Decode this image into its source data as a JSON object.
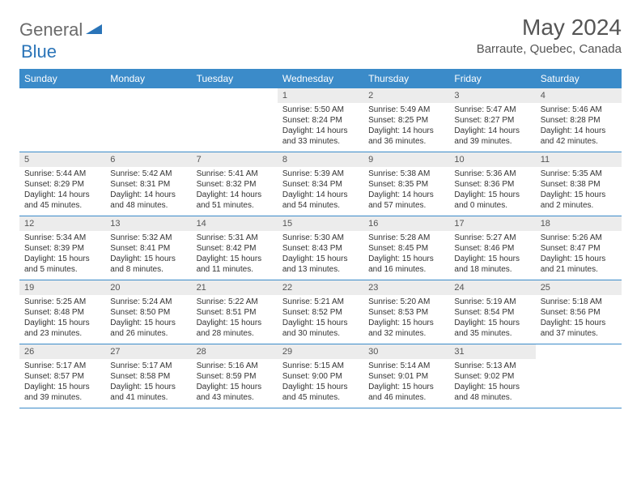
{
  "logo": {
    "general": "General",
    "blue": "Blue"
  },
  "title": "May 2024",
  "location": "Barraute, Quebec, Canada",
  "colors": {
    "header_bg": "#3b8bc9",
    "header_text": "#ffffff",
    "daynum_bg": "#ececec",
    "border": "#3b8bc9",
    "text": "#333333",
    "logo_gray": "#6b6b6b",
    "logo_blue": "#2a74b8"
  },
  "day_names": [
    "Sunday",
    "Monday",
    "Tuesday",
    "Wednesday",
    "Thursday",
    "Friday",
    "Saturday"
  ],
  "weeks": [
    [
      {
        "empty": true
      },
      {
        "empty": true
      },
      {
        "empty": true
      },
      {
        "num": "1",
        "sunrise": "Sunrise: 5:50 AM",
        "sunset": "Sunset: 8:24 PM",
        "daylight": "Daylight: 14 hours and 33 minutes."
      },
      {
        "num": "2",
        "sunrise": "Sunrise: 5:49 AM",
        "sunset": "Sunset: 8:25 PM",
        "daylight": "Daylight: 14 hours and 36 minutes."
      },
      {
        "num": "3",
        "sunrise": "Sunrise: 5:47 AM",
        "sunset": "Sunset: 8:27 PM",
        "daylight": "Daylight: 14 hours and 39 minutes."
      },
      {
        "num": "4",
        "sunrise": "Sunrise: 5:46 AM",
        "sunset": "Sunset: 8:28 PM",
        "daylight": "Daylight: 14 hours and 42 minutes."
      }
    ],
    [
      {
        "num": "5",
        "sunrise": "Sunrise: 5:44 AM",
        "sunset": "Sunset: 8:29 PM",
        "daylight": "Daylight: 14 hours and 45 minutes."
      },
      {
        "num": "6",
        "sunrise": "Sunrise: 5:42 AM",
        "sunset": "Sunset: 8:31 PM",
        "daylight": "Daylight: 14 hours and 48 minutes."
      },
      {
        "num": "7",
        "sunrise": "Sunrise: 5:41 AM",
        "sunset": "Sunset: 8:32 PM",
        "daylight": "Daylight: 14 hours and 51 minutes."
      },
      {
        "num": "8",
        "sunrise": "Sunrise: 5:39 AM",
        "sunset": "Sunset: 8:34 PM",
        "daylight": "Daylight: 14 hours and 54 minutes."
      },
      {
        "num": "9",
        "sunrise": "Sunrise: 5:38 AM",
        "sunset": "Sunset: 8:35 PM",
        "daylight": "Daylight: 14 hours and 57 minutes."
      },
      {
        "num": "10",
        "sunrise": "Sunrise: 5:36 AM",
        "sunset": "Sunset: 8:36 PM",
        "daylight": "Daylight: 15 hours and 0 minutes."
      },
      {
        "num": "11",
        "sunrise": "Sunrise: 5:35 AM",
        "sunset": "Sunset: 8:38 PM",
        "daylight": "Daylight: 15 hours and 2 minutes."
      }
    ],
    [
      {
        "num": "12",
        "sunrise": "Sunrise: 5:34 AM",
        "sunset": "Sunset: 8:39 PM",
        "daylight": "Daylight: 15 hours and 5 minutes."
      },
      {
        "num": "13",
        "sunrise": "Sunrise: 5:32 AM",
        "sunset": "Sunset: 8:41 PM",
        "daylight": "Daylight: 15 hours and 8 minutes."
      },
      {
        "num": "14",
        "sunrise": "Sunrise: 5:31 AM",
        "sunset": "Sunset: 8:42 PM",
        "daylight": "Daylight: 15 hours and 11 minutes."
      },
      {
        "num": "15",
        "sunrise": "Sunrise: 5:30 AM",
        "sunset": "Sunset: 8:43 PM",
        "daylight": "Daylight: 15 hours and 13 minutes."
      },
      {
        "num": "16",
        "sunrise": "Sunrise: 5:28 AM",
        "sunset": "Sunset: 8:45 PM",
        "daylight": "Daylight: 15 hours and 16 minutes."
      },
      {
        "num": "17",
        "sunrise": "Sunrise: 5:27 AM",
        "sunset": "Sunset: 8:46 PM",
        "daylight": "Daylight: 15 hours and 18 minutes."
      },
      {
        "num": "18",
        "sunrise": "Sunrise: 5:26 AM",
        "sunset": "Sunset: 8:47 PM",
        "daylight": "Daylight: 15 hours and 21 minutes."
      }
    ],
    [
      {
        "num": "19",
        "sunrise": "Sunrise: 5:25 AM",
        "sunset": "Sunset: 8:48 PM",
        "daylight": "Daylight: 15 hours and 23 minutes."
      },
      {
        "num": "20",
        "sunrise": "Sunrise: 5:24 AM",
        "sunset": "Sunset: 8:50 PM",
        "daylight": "Daylight: 15 hours and 26 minutes."
      },
      {
        "num": "21",
        "sunrise": "Sunrise: 5:22 AM",
        "sunset": "Sunset: 8:51 PM",
        "daylight": "Daylight: 15 hours and 28 minutes."
      },
      {
        "num": "22",
        "sunrise": "Sunrise: 5:21 AM",
        "sunset": "Sunset: 8:52 PM",
        "daylight": "Daylight: 15 hours and 30 minutes."
      },
      {
        "num": "23",
        "sunrise": "Sunrise: 5:20 AM",
        "sunset": "Sunset: 8:53 PM",
        "daylight": "Daylight: 15 hours and 32 minutes."
      },
      {
        "num": "24",
        "sunrise": "Sunrise: 5:19 AM",
        "sunset": "Sunset: 8:54 PM",
        "daylight": "Daylight: 15 hours and 35 minutes."
      },
      {
        "num": "25",
        "sunrise": "Sunrise: 5:18 AM",
        "sunset": "Sunset: 8:56 PM",
        "daylight": "Daylight: 15 hours and 37 minutes."
      }
    ],
    [
      {
        "num": "26",
        "sunrise": "Sunrise: 5:17 AM",
        "sunset": "Sunset: 8:57 PM",
        "daylight": "Daylight: 15 hours and 39 minutes."
      },
      {
        "num": "27",
        "sunrise": "Sunrise: 5:17 AM",
        "sunset": "Sunset: 8:58 PM",
        "daylight": "Daylight: 15 hours and 41 minutes."
      },
      {
        "num": "28",
        "sunrise": "Sunrise: 5:16 AM",
        "sunset": "Sunset: 8:59 PM",
        "daylight": "Daylight: 15 hours and 43 minutes."
      },
      {
        "num": "29",
        "sunrise": "Sunrise: 5:15 AM",
        "sunset": "Sunset: 9:00 PM",
        "daylight": "Daylight: 15 hours and 45 minutes."
      },
      {
        "num": "30",
        "sunrise": "Sunrise: 5:14 AM",
        "sunset": "Sunset: 9:01 PM",
        "daylight": "Daylight: 15 hours and 46 minutes."
      },
      {
        "num": "31",
        "sunrise": "Sunrise: 5:13 AM",
        "sunset": "Sunset: 9:02 PM",
        "daylight": "Daylight: 15 hours and 48 minutes."
      },
      {
        "empty": true
      }
    ]
  ]
}
